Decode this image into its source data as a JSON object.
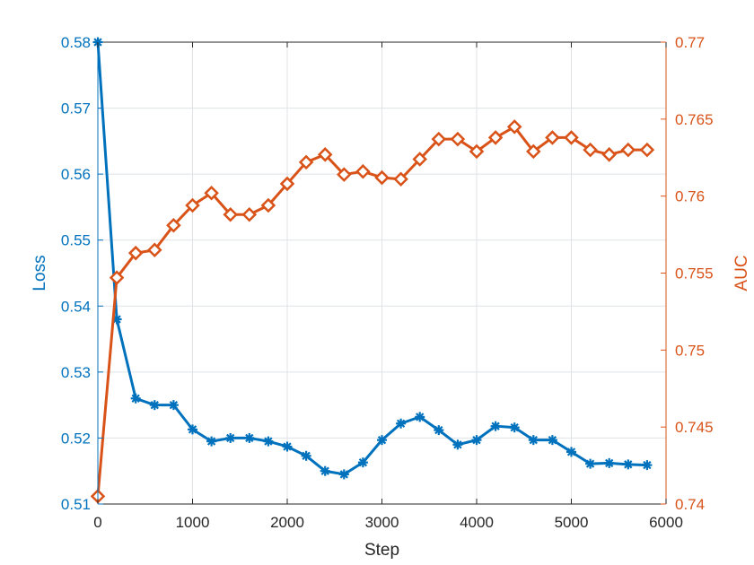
{
  "chart_data": {
    "type": "line",
    "xlabel": "Step",
    "ylabel_left": "Loss",
    "ylabel_right": "AUC",
    "xlim": [
      0,
      6000
    ],
    "xticks": [
      "0",
      "1000",
      "2000",
      "3000",
      "4000",
      "5000",
      "6000"
    ],
    "ylim_left": [
      0.51,
      0.58
    ],
    "yticks_left": [
      "0.51",
      "0.52",
      "0.53",
      "0.54",
      "0.55",
      "0.56",
      "0.57",
      "0.58"
    ],
    "ylim_right": [
      0.74,
      0.77
    ],
    "yticks_right": [
      "0.74",
      "0.745",
      "0.75",
      "0.755",
      "0.76",
      "0.765",
      "0.77"
    ],
    "grid": true,
    "x": [
      0,
      200,
      400,
      600,
      800,
      1000,
      1200,
      1400,
      1600,
      1800,
      2000,
      2200,
      2400,
      2600,
      2800,
      3000,
      3200,
      3400,
      3600,
      3800,
      4000,
      4200,
      4400,
      4600,
      4800,
      5000,
      5200,
      5400,
      5600,
      5800
    ],
    "series": [
      {
        "axis": "left",
        "marker": "asterisk",
        "color": "#0072BD",
        "values": [
          0.58,
          0.538,
          0.526,
          0.525,
          0.525,
          0.5213,
          0.5195,
          0.52,
          0.52,
          0.5195,
          0.5187,
          0.5173,
          0.515,
          0.5145,
          0.5163,
          0.5197,
          0.5222,
          0.5232,
          0.5212,
          0.519,
          0.5197,
          0.5218,
          0.5216,
          0.5197,
          0.5197,
          0.5179,
          0.5161,
          0.5162,
          0.516,
          0.5159
        ]
      },
      {
        "axis": "right",
        "marker": "diamond",
        "color": "#D95319",
        "values": [
          0.7405,
          0.7547,
          0.7563,
          0.7565,
          0.7581,
          0.7594,
          0.7602,
          0.7588,
          0.7588,
          0.7594,
          0.7608,
          0.7622,
          0.7627,
          0.7614,
          0.7616,
          0.7612,
          0.7611,
          0.7624,
          0.7637,
          0.7637,
          0.7629,
          0.7638,
          0.7645,
          0.7629,
          0.7638,
          0.7638,
          0.763,
          0.7627,
          0.763,
          0.763
        ]
      }
    ]
  }
}
